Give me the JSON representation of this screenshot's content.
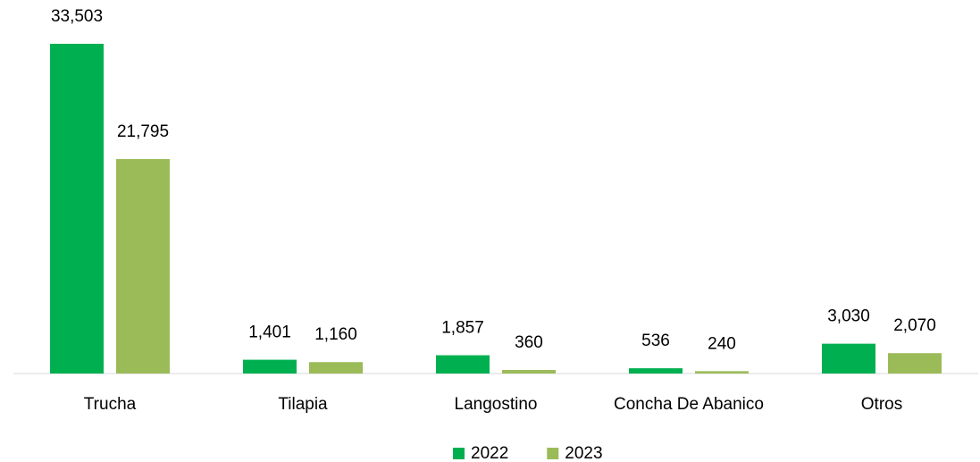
{
  "chart_data": {
    "type": "bar",
    "categories": [
      "Trucha",
      "Tilapia",
      "Langostino",
      "Concha De Abanico",
      "Otros"
    ],
    "series": [
      {
        "name": "2022",
        "color": "#00b050",
        "values": [
          33503,
          1401,
          1857,
          536,
          3030
        ],
        "value_labels": [
          "33,503",
          "1,401",
          "1,857",
          "536",
          "3,030"
        ]
      },
      {
        "name": "2023",
        "color": "#9bbb59",
        "values": [
          21795,
          1160,
          360,
          240,
          2070
        ],
        "value_labels": [
          "21,795",
          "1,160",
          "360",
          "240",
          "2,070"
        ]
      }
    ]
  }
}
